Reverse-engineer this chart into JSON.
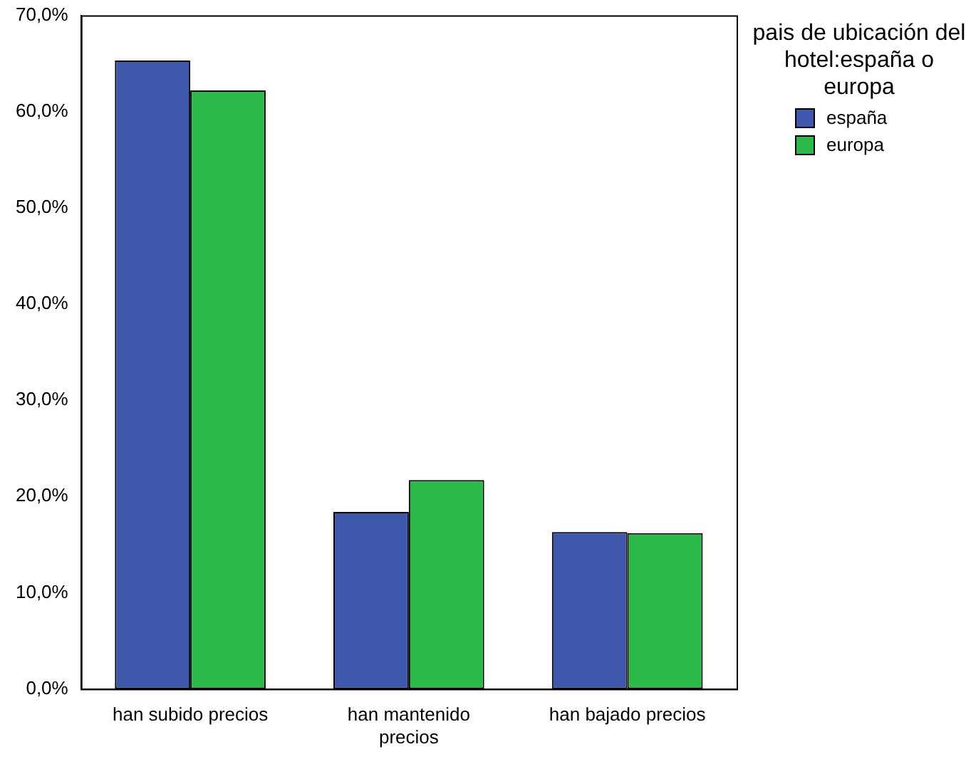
{
  "chart_data": {
    "type": "bar",
    "categories": [
      "han subido precios",
      "han mantenido precios",
      "han bajado precios"
    ],
    "series": [
      {
        "name": "españa",
        "color": "#3e58ac",
        "values": [
          65.3,
          18.4,
          16.3
        ]
      },
      {
        "name": "europa",
        "color": "#2db84a",
        "values": [
          62.2,
          21.7,
          16.2
        ]
      }
    ],
    "ylim": [
      0,
      70
    ],
    "yticks": [
      {
        "value": 0,
        "label": "0,0%"
      },
      {
        "value": 10,
        "label": "10,0%"
      },
      {
        "value": 20,
        "label": "20,0%"
      },
      {
        "value": 30,
        "label": "30,0%"
      },
      {
        "value": 40,
        "label": "40,0%"
      },
      {
        "value": 50,
        "label": "50,0%"
      },
      {
        "value": 60,
        "label": "60,0%"
      },
      {
        "value": 70,
        "label": "70,0%"
      }
    ],
    "legend_title": "pais de ubicación del hotel:españa o europa",
    "legend": "top right",
    "grid": false
  }
}
